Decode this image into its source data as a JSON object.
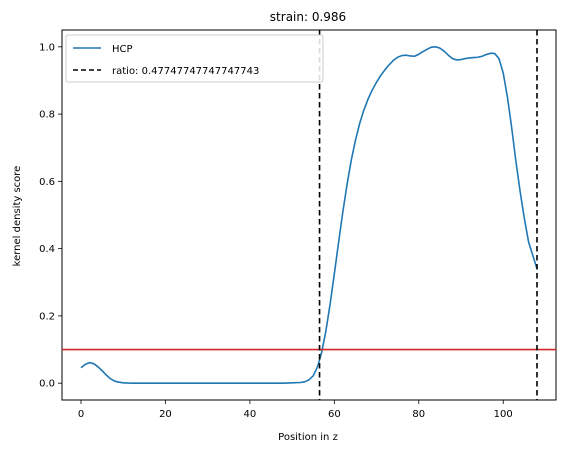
{
  "chart_data": {
    "type": "line",
    "title": "strain: 0.986",
    "xlabel": "Position in z",
    "ylabel": "kernel density score",
    "xlim": [
      -4.5,
      112.5
    ],
    "ylim": [
      -0.05,
      1.05
    ],
    "xticks": [
      0,
      20,
      40,
      60,
      80,
      100
    ],
    "yticks": [
      0.0,
      0.2,
      0.4,
      0.6,
      0.8,
      1.0
    ],
    "xtick_labels": [
      "0",
      "20",
      "40",
      "60",
      "80",
      "100"
    ],
    "ytick_labels": [
      "0.0",
      "0.2",
      "0.4",
      "0.6",
      "0.8",
      "1.0"
    ],
    "grid": false,
    "legend_position": "upper-left",
    "legend": [
      "HCP",
      "ratio: 0.47747747747747743"
    ],
    "series": [
      {
        "name": "HCP",
        "color": "#1f77b4",
        "x": [
          0,
          1,
          2,
          3,
          4,
          5,
          6,
          7,
          8,
          9,
          10,
          12,
          15,
          20,
          30,
          40,
          48,
          50,
          52,
          53,
          54,
          55,
          56,
          57,
          58,
          59,
          60,
          61,
          62,
          63,
          64,
          65,
          66,
          67,
          68,
          69,
          70,
          71,
          72,
          73,
          74,
          75,
          76,
          77,
          78,
          79,
          80,
          81,
          82,
          83,
          84,
          85,
          86,
          87,
          88,
          89,
          90,
          91,
          92,
          93,
          94,
          95,
          96,
          97,
          98,
          99,
          100,
          101,
          102,
          103,
          104,
          105,
          106,
          107,
          108
        ],
        "y": [
          0.046,
          0.056,
          0.061,
          0.058,
          0.049,
          0.037,
          0.024,
          0.013,
          0.006,
          0.003,
          0.001,
          0.0,
          0.0,
          0.0,
          0.0,
          0.0,
          0.0,
          0.001,
          0.002,
          0.004,
          0.01,
          0.022,
          0.048,
          0.092,
          0.155,
          0.235,
          0.325,
          0.418,
          0.508,
          0.59,
          0.662,
          0.722,
          0.772,
          0.812,
          0.845,
          0.872,
          0.895,
          0.915,
          0.932,
          0.947,
          0.96,
          0.969,
          0.974,
          0.975,
          0.973,
          0.972,
          0.978,
          0.986,
          0.993,
          0.999,
          1.0,
          0.996,
          0.987,
          0.975,
          0.965,
          0.961,
          0.962,
          0.965,
          0.967,
          0.968,
          0.969,
          0.972,
          0.977,
          0.981,
          0.98,
          0.965,
          0.922,
          0.85,
          0.76,
          0.66,
          0.57,
          0.49,
          0.42,
          0.38,
          0.34
        ]
      }
    ],
    "vlines": [
      {
        "x": 56.5,
        "color": "#000000",
        "style": "dashed"
      },
      {
        "x": 108.0,
        "color": "#000000",
        "style": "dashed"
      }
    ],
    "hlines": [
      {
        "y": 0.1,
        "color": "#d62728",
        "style": "solid"
      }
    ]
  }
}
